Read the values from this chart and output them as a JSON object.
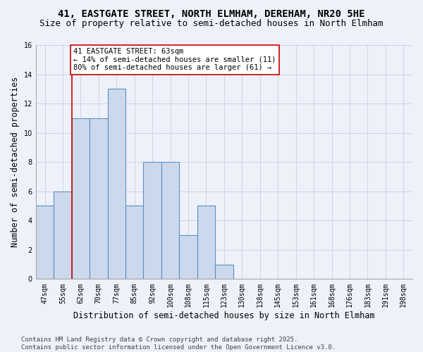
{
  "title1": "41, EASTGATE STREET, NORTH ELMHAM, DEREHAM, NR20 5HE",
  "title2": "Size of property relative to semi-detached houses in North Elmham",
  "xlabel": "Distribution of semi-detached houses by size in North Elmham",
  "ylabel": "Number of semi-detached properties",
  "categories": [
    "47sqm",
    "55sqm",
    "62sqm",
    "70sqm",
    "77sqm",
    "85sqm",
    "92sqm",
    "100sqm",
    "108sqm",
    "115sqm",
    "123sqm",
    "130sqm",
    "138sqm",
    "145sqm",
    "153sqm",
    "161sqm",
    "168sqm",
    "176sqm",
    "183sqm",
    "191sqm",
    "198sqm"
  ],
  "values": [
    5,
    6,
    11,
    11,
    13,
    5,
    8,
    8,
    3,
    5,
    1,
    0,
    0,
    0,
    0,
    0,
    0,
    0,
    0,
    0,
    0
  ],
  "bar_color": "#ccd9ec",
  "bar_edge_color": "#5a8fc3",
  "grid_color": "#c8d0e0",
  "background_color": "#eef1f9",
  "vline_color": "#cc0000",
  "annotation_text": "41 EASTGATE STREET: 63sqm\n← 14% of semi-detached houses are smaller (11)\n80% of semi-detached houses are larger (61) →",
  "annotation_box_color": "#ffffff",
  "annotation_box_edge": "#cc0000",
  "ylim": [
    0,
    16
  ],
  "yticks": [
    0,
    2,
    4,
    6,
    8,
    10,
    12,
    14,
    16
  ],
  "footer": "Contains HM Land Registry data © Crown copyright and database right 2025.\nContains public sector information licensed under the Open Government Licence v3.0.",
  "title1_fontsize": 10,
  "title2_fontsize": 9,
  "xlabel_fontsize": 8.5,
  "ylabel_fontsize": 8.5,
  "tick_fontsize": 7,
  "annot_fontsize": 7.5,
  "footer_fontsize": 6.5
}
